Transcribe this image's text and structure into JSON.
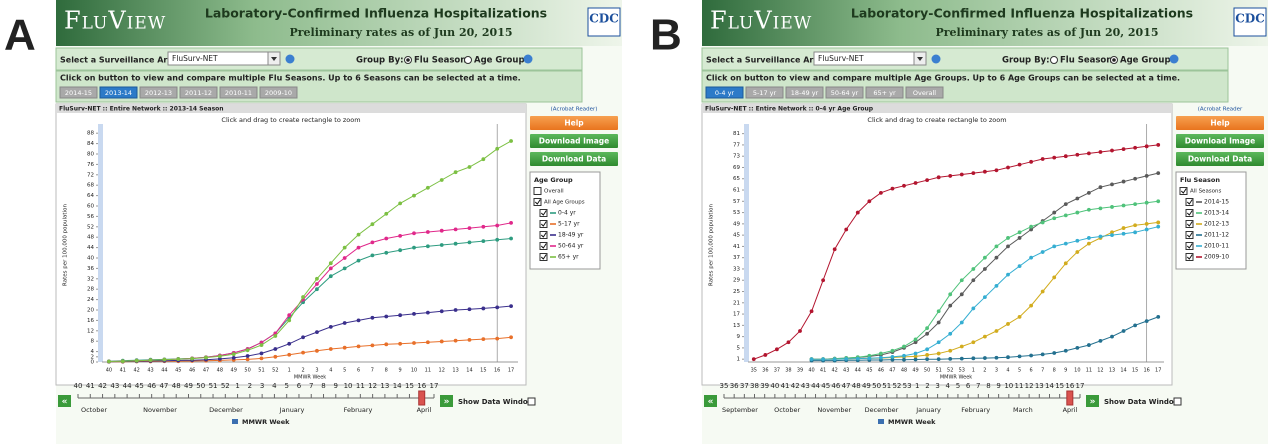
{
  "panels": [
    {
      "letter": "A",
      "logo": "FluView",
      "title": "Laboratory-Confirmed Influenza Hospitalizations",
      "subtitle": "Preliminary rates as of Jun 20, 2015",
      "cdc": "CDC",
      "surveillance_label": "Select a Surveillance Area:",
      "surveillance_value": "FluSurv-NET",
      "group_by_label": "Group By:",
      "group_options": [
        "Flu Season",
        "Age Group"
      ],
      "group_selected": 0,
      "instruction": "Click on button to view and compare multiple Flu Seasons. Up to 6 Seasons can be selected at a time.",
      "tabs": [
        "2014-15",
        "2013-14",
        "2012-13",
        "2011-12",
        "2010-11",
        "2009-10"
      ],
      "tab_selected": 1,
      "acrobat": "(Acrobat Reader)",
      "buttons": [
        "Help",
        "Download Image",
        "Download Data"
      ],
      "months": [
        "October",
        "November",
        "December",
        "January",
        "February",
        "April"
      ],
      "slider_label": "MMWR Week",
      "show_data_window": "Show Data Window"
    },
    {
      "letter": "B",
      "logo": "FluView",
      "title": "Laboratory-Confirmed Influenza Hospitalizations",
      "subtitle": "Preliminary rates as of Jun 20, 2015",
      "cdc": "CDC",
      "surveillance_label": "Select a Surveillance Area:",
      "surveillance_value": "FluSurv-NET",
      "group_by_label": "Group By:",
      "group_options": [
        "Flu Season",
        "Age Group"
      ],
      "group_selected": 1,
      "instruction": "Click on button to view and compare multiple Age Groups. Up to 6 Age Groups can be selected at a time.",
      "tabs": [
        "0-4 yr",
        "5-17 yr",
        "18-49 yr",
        "50-64 yr",
        "65+ yr",
        "Overall"
      ],
      "tab_selected": 0,
      "acrobat": "(Acrobat Reader",
      "buttons": [
        "Help",
        "Download Image",
        "Download Data"
      ],
      "months": [
        "September",
        "October",
        "November",
        "December",
        "January",
        "February",
        "March",
        "April"
      ],
      "slider_label": "MMWR Week",
      "show_data_window": "Show Data Window"
    }
  ],
  "chart_data": [
    {
      "type": "line",
      "title": "FluSurv-NET :: Entire Network :: 2013-14 Season",
      "subtitle": "Click and drag to create rectangle to zoom",
      "x_label": "MMWR Week",
      "y_label": "Rates per 100,000 population",
      "categories": [
        "40",
        "41",
        "42",
        "43",
        "44",
        "45",
        "46",
        "47",
        "48",
        "49",
        "50",
        "51",
        "52",
        "1",
        "2",
        "3",
        "4",
        "5",
        "6",
        "7",
        "8",
        "9",
        "10",
        "11",
        "12",
        "13",
        "14",
        "15",
        "16",
        "17"
      ],
      "ylim": [
        0,
        90
      ],
      "yticks": [
        0,
        2,
        4,
        8,
        12,
        16,
        20,
        24,
        28,
        32,
        36,
        40,
        44,
        48,
        52,
        56,
        60,
        64,
        68,
        72,
        76,
        80,
        84,
        88
      ],
      "legend_title": "Age Group",
      "legend_items": [
        {
          "label": "Overall",
          "checked": false
        },
        {
          "label": "All Age Groups",
          "checked": true
        }
      ],
      "series": [
        {
          "name": "0-4 yr",
          "color": "#2e9c80",
          "values": [
            0.3,
            0.5,
            0.7,
            0.9,
            1,
            1.2,
            1.4,
            1.8,
            2.5,
            3.5,
            5,
            7.5,
            11,
            17,
            23,
            28,
            33,
            36,
            39,
            41,
            42,
            43,
            44,
            44.5,
            45,
            45.5,
            46,
            46.5,
            47,
            47.5
          ]
        },
        {
          "name": "5-17 yr",
          "color": "#e8702a",
          "values": [
            0.1,
            0.1,
            0.2,
            0.2,
            0.3,
            0.3,
            0.4,
            0.5,
            0.6,
            0.8,
            1,
            1.4,
            2,
            2.8,
            3.6,
            4.3,
            5,
            5.5,
            6,
            6.4,
            6.8,
            7,
            7.3,
            7.6,
            7.9,
            8.2,
            8.5,
            8.8,
            9,
            9.5
          ]
        },
        {
          "name": "18-49 yr",
          "color": "#3a2f8c",
          "values": [
            0.1,
            0.2,
            0.3,
            0.4,
            0.5,
            0.6,
            0.7,
            0.9,
            1.2,
            1.6,
            2.3,
            3.3,
            5,
            7,
            9.5,
            11.5,
            13.5,
            15,
            16,
            17,
            17.5,
            18,
            18.5,
            19,
            19.5,
            20,
            20.3,
            20.6,
            21,
            21.5
          ]
        },
        {
          "name": "50-64 yr",
          "color": "#e0288a",
          "values": [
            0.2,
            0.3,
            0.5,
            0.7,
            0.9,
            1.1,
            1.4,
            1.8,
            2.5,
            3.5,
            5,
            7.5,
            11,
            18,
            24,
            30,
            36,
            40,
            44,
            46,
            47.5,
            48.5,
            49.5,
            50,
            50.5,
            51,
            51.5,
            52,
            52.5,
            53.5
          ]
        },
        {
          "name": "65+ yr",
          "color": "#7cc043",
          "values": [
            0.2,
            0.3,
            0.5,
            0.7,
            0.9,
            1.1,
            1.3,
            1.7,
            2.2,
            3,
            4.5,
            6.5,
            10,
            16,
            25,
            32,
            38,
            44,
            49,
            53,
            57,
            61,
            64,
            67,
            70,
            73,
            75,
            78,
            82,
            85
          ]
        }
      ]
    },
    {
      "type": "line",
      "title": "FluSurv-NET :: Entire Network :: 0-4 yr Age Group",
      "subtitle": "Click and drag to create rectangle to zoom",
      "x_label": "MMWR Week",
      "y_label": "Rates per 100,000 population",
      "categories": [
        "35",
        "36",
        "37",
        "38",
        "39",
        "40",
        "41",
        "42",
        "43",
        "44",
        "45",
        "46",
        "47",
        "48",
        "49",
        "50",
        "51",
        "52",
        "53",
        "1",
        "2",
        "3",
        "4",
        "5",
        "6",
        "7",
        "8",
        "9",
        "10",
        "11",
        "12",
        "13",
        "14",
        "15",
        "16",
        "17"
      ],
      "ylim": [
        0,
        83
      ],
      "yticks": [
        1,
        5,
        9,
        13,
        17,
        21,
        25,
        29,
        33,
        37,
        41,
        45,
        49,
        53,
        57,
        61,
        65,
        69,
        73,
        77,
        81
      ],
      "legend_title": "Flu Season",
      "legend_items": [
        {
          "label": "All Seasons",
          "checked": true
        }
      ],
      "series": [
        {
          "name": "2014-15",
          "color": "#5a5a5a",
          "values": [
            null,
            null,
            null,
            null,
            null,
            1,
            1,
            1.2,
            1.4,
            1.6,
            2,
            2.5,
            3.5,
            5,
            7,
            10,
            14,
            20,
            24,
            29,
            33,
            37,
            41,
            44,
            47,
            50,
            53,
            56,
            58,
            60,
            62,
            63,
            64,
            65,
            66,
            67
          ]
        },
        {
          "name": "2013-14",
          "color": "#4fc27a",
          "values": [
            null,
            null,
            null,
            null,
            null,
            1,
            1,
            1.2,
            1.4,
            1.7,
            2.2,
            3,
            4,
            5.5,
            8,
            12,
            18,
            24,
            29,
            33,
            37,
            41,
            44,
            46,
            48,
            49.5,
            51,
            52,
            53,
            54,
            54.5,
            55,
            55.5,
            56,
            56.5,
            57
          ]
        },
        {
          "name": "2012-13",
          "color": "#d2ac1e",
          "values": [
            null,
            null,
            null,
            null,
            null,
            1,
            1,
            1,
            1.1,
            1.2,
            1.3,
            1.4,
            1.6,
            1.8,
            2,
            2.5,
            3,
            4,
            5.5,
            7,
            9,
            11,
            13.5,
            16,
            20,
            25,
            30,
            35,
            39,
            42,
            44,
            46,
            47.5,
            48.5,
            49,
            49.5
          ]
        },
        {
          "name": "2011-12",
          "color": "#23708f",
          "values": [
            null,
            null,
            null,
            null,
            null,
            0.5,
            0.5,
            0.5,
            0.6,
            0.6,
            0.7,
            0.7,
            0.8,
            0.8,
            0.9,
            1,
            1,
            1.1,
            1.2,
            1.3,
            1.4,
            1.5,
            1.7,
            2,
            2.3,
            2.7,
            3.2,
            4,
            5,
            6,
            7.5,
            9,
            11,
            13,
            14.5,
            16
          ]
        },
        {
          "name": "2010-11",
          "color": "#35aed2",
          "values": [
            null,
            null,
            null,
            null,
            null,
            1,
            1,
            1,
            1.1,
            1.2,
            1.3,
            1.5,
            1.8,
            2.2,
            3,
            4.5,
            7,
            10,
            14,
            19,
            23,
            27,
            31,
            34,
            37,
            39,
            41,
            42,
            43,
            44,
            44.5,
            45,
            45.5,
            46,
            47,
            48
          ]
        },
        {
          "name": "2009-10",
          "color": "#b3152f",
          "values": [
            1,
            2.5,
            4.5,
            7,
            11,
            18,
            29,
            40,
            47,
            53,
            57,
            60,
            61.5,
            62.5,
            63.5,
            64.5,
            65.5,
            66,
            66.5,
            67,
            67.5,
            68,
            69,
            70,
            71,
            72,
            72.5,
            73,
            73.5,
            74,
            74.5,
            75,
            75.5,
            76,
            76.5,
            77
          ]
        }
      ]
    }
  ]
}
